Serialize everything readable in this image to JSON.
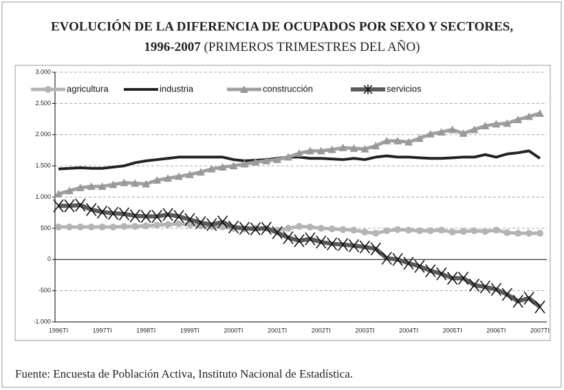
{
  "chart_data": {
    "type": "line",
    "title": "EVOLUCIÓN DE LA DIFERENCIA DE OCUPADOS POR SEXO Y SECTORES,",
    "title_years": "1996-2007",
    "subtitle": "(PRIMEROS TRIMESTRES DEL AÑO)",
    "source": "Fuente: Encuesta de Población Activa, Instituto Nacional de Estadística.",
    "categories": [
      "1996TI",
      null,
      null,
      null,
      "1997TI",
      null,
      null,
      null,
      "1998TI",
      null,
      null,
      null,
      "1999TI",
      null,
      null,
      null,
      "2000TI",
      null,
      null,
      null,
      "2001TI",
      null,
      null,
      null,
      "2002TI",
      null,
      null,
      null,
      "2003TI",
      null,
      null,
      null,
      "2004TI",
      null,
      null,
      null,
      "2005TI",
      null,
      null,
      null,
      "2006TI",
      null,
      null,
      null,
      "2007TI"
    ],
    "ylim": [
      -1000,
      3000
    ],
    "yticks": [
      {
        "value": 3000,
        "label": "3.000"
      },
      {
        "value": 2500,
        "label": "2.500"
      },
      {
        "value": 2000,
        "label": "2.000"
      },
      {
        "value": 1500,
        "label": "1.500"
      },
      {
        "value": 1000,
        "label": "1.000"
      },
      500,
      0,
      -500,
      {
        "value": -1000,
        "label": "-1.000"
      }
    ],
    "grid": true,
    "legend": "top",
    "series": [
      {
        "name": "agricultura",
        "color": "#b4b4b4",
        "marker": "circle",
        "values": [
          520,
          520,
          520,
          520,
          520,
          520,
          530,
          530,
          540,
          550,
          560,
          570,
          560,
          540,
          530,
          520,
          500,
          490,
          500,
          500,
          470,
          500,
          530,
          520,
          500,
          490,
          480,
          470,
          440,
          420,
          460,
          480,
          470,
          460,
          460,
          470,
          440,
          450,
          460,
          450,
          470,
          430,
          420,
          420,
          420
        ]
      },
      {
        "name": "industria",
        "color": "#222222",
        "marker": "none",
        "values": [
          1450,
          1460,
          1470,
          1460,
          1460,
          1480,
          1500,
          1550,
          1580,
          1600,
          1620,
          1640,
          1640,
          1640,
          1640,
          1640,
          1600,
          1580,
          1590,
          1600,
          1620,
          1640,
          1640,
          1620,
          1620,
          1610,
          1600,
          1620,
          1600,
          1640,
          1660,
          1640,
          1640,
          1630,
          1620,
          1620,
          1630,
          1640,
          1640,
          1680,
          1640,
          1690,
          1710,
          1740,
          1620
        ]
      },
      {
        "name": "construcción",
        "color": "#a0a0a0",
        "marker": "triangle",
        "values": [
          1050,
          1100,
          1150,
          1170,
          1170,
          1200,
          1230,
          1220,
          1210,
          1270,
          1300,
          1330,
          1360,
          1400,
          1450,
          1480,
          1500,
          1530,
          1560,
          1580,
          1600,
          1640,
          1700,
          1740,
          1740,
          1760,
          1790,
          1780,
          1770,
          1820,
          1900,
          1900,
          1880,
          1940,
          2010,
          2040,
          2080,
          2020,
          2080,
          2140,
          2170,
          2180,
          2240,
          2290,
          2340
        ]
      },
      {
        "name": "servicios",
        "color": "#5a5a5a",
        "marker": "x",
        "values": [
          860,
          860,
          870,
          800,
          760,
          740,
          730,
          700,
          690,
          690,
          720,
          690,
          640,
          590,
          560,
          600,
          520,
          500,
          490,
          500,
          430,
          350,
          300,
          330,
          280,
          250,
          240,
          220,
          200,
          170,
          20,
          0,
          -60,
          -110,
          -180,
          -230,
          -300,
          -300,
          -410,
          -440,
          -480,
          -560,
          -670,
          -620,
          -760
        ]
      }
    ]
  }
}
